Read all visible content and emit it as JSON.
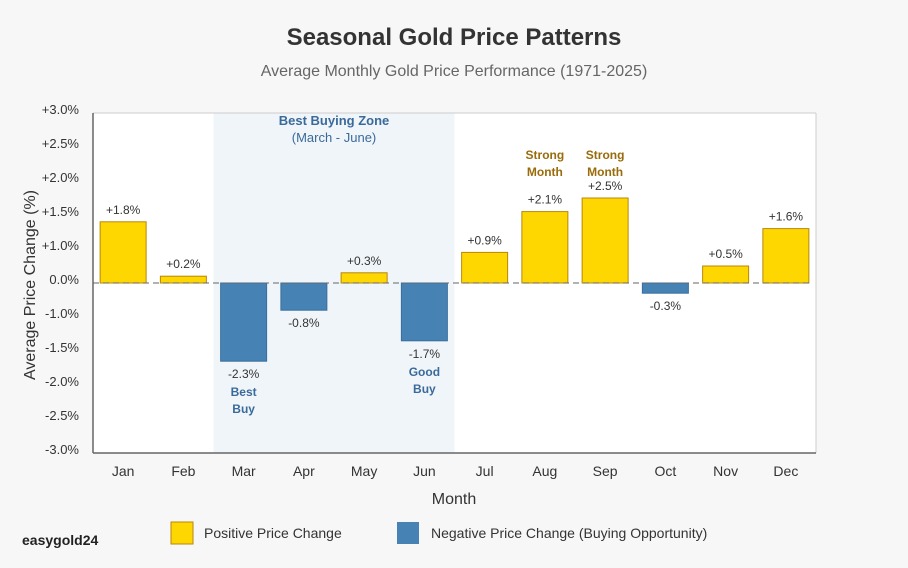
{
  "chart_data": {
    "type": "bar",
    "title": "Seasonal Gold Price Patterns",
    "subtitle": "Average Monthly Gold Price Performance (1971-2025)",
    "xlabel": "Month",
    "ylabel": "Average Price Change (%)",
    "categories": [
      "Jan",
      "Feb",
      "Mar",
      "Apr",
      "May",
      "Jun",
      "Jul",
      "Aug",
      "Sep",
      "Oct",
      "Nov",
      "Dec"
    ],
    "values": [
      1.8,
      0.2,
      -2.3,
      -0.8,
      0.3,
      -1.7,
      0.9,
      2.1,
      2.5,
      -0.3,
      0.5,
      1.6
    ],
    "value_labels": [
      "+1.8%",
      "+0.2%",
      "-2.3%",
      "-0.8%",
      "+0.3%",
      "-1.7%",
      "+0.9%",
      "+2.1%",
      "+2.5%",
      "-0.3%",
      "+0.5%",
      "+1.6%"
    ],
    "ylim": [
      -3.0,
      3.0
    ],
    "ytick_labels": [
      "+3.0%",
      "+2.5%",
      "+2.0%",
      "+1.5%",
      "+1.0%",
      "0.0%",
      "-1.0%",
      "-1.5%",
      "-2.0%",
      "-2.5%",
      "-3.0%"
    ],
    "grid": false,
    "zero_line": "dashed",
    "colors": {
      "positive": "#FFD700",
      "positive_border": "#B8860B",
      "negative": "#4682B4",
      "negative_border": "#3a6f9c",
      "zone": "#f0f5fa"
    },
    "highlight_zone": {
      "title": "Best Buying Zone",
      "subtitle": "(March - June)",
      "from_category": "Mar",
      "to_category": "Jun"
    },
    "annotations": [
      {
        "category": "Mar",
        "lines": [
          "Best",
          "Buy"
        ],
        "kind": "negative"
      },
      {
        "category": "Jun",
        "lines": [
          "Good",
          "Buy"
        ],
        "kind": "negative"
      },
      {
        "category": "Aug",
        "lines": [
          "Strong",
          "Month"
        ],
        "kind": "positive"
      },
      {
        "category": "Sep",
        "lines": [
          "Strong",
          "Month"
        ],
        "kind": "positive"
      }
    ],
    "legend": {
      "placement": "bottom",
      "entries": [
        {
          "label": "Positive Price Change",
          "color": "#FFD700"
        },
        {
          "label": "Negative Price Change (Buying Opportunity)",
          "color": "#4682B4"
        }
      ]
    }
  },
  "brand": "easygold24"
}
